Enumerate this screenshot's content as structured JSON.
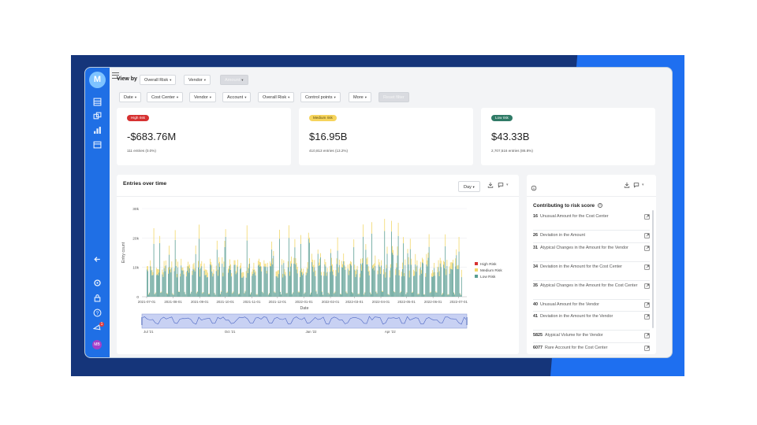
{
  "toolbar": {
    "view_by_label": "View by",
    "view_by": [
      {
        "label": "Overall Risk",
        "disabled": false
      },
      {
        "label": "Vendor",
        "disabled": false
      },
      {
        "label": "Amount",
        "disabled": true
      }
    ]
  },
  "filters": [
    {
      "label": "Date",
      "disabled": false
    },
    {
      "label": "Cost Center",
      "disabled": false
    },
    {
      "label": "Vendor",
      "disabled": false
    },
    {
      "label": "Account",
      "disabled": false
    },
    {
      "label": "Overall Risk",
      "disabled": false
    },
    {
      "label": "Control points",
      "disabled": false
    },
    {
      "label": "More",
      "disabled": false
    },
    {
      "label": "Reset filter",
      "disabled": true
    }
  ],
  "kpis": [
    {
      "tag": "High risk",
      "tag_color": "#d63131",
      "tag_text_color": "#ffffff",
      "value": "-$683.76M",
      "sub": "111 entries (0.0%)"
    },
    {
      "tag": "Medium risk",
      "tag_color": "#f6d45c",
      "tag_text_color": "#5a4a10",
      "value": "$16.95B",
      "sub": "410,813 entries (13.2%)"
    },
    {
      "tag": "Low risk",
      "tag_color": "#2f7a66",
      "tag_text_color": "#ffffff",
      "value": "$43.33B",
      "sub": "2,707,516 entries (86.8%)"
    }
  ],
  "entries": {
    "title": "Entries over time",
    "granularity": "Day",
    "download_icon": "download-icon",
    "comment_icon": "comment-icon"
  },
  "chart_data": {
    "type": "bar",
    "stacked": true,
    "xlabel": "Date",
    "ylabel": "Entry count",
    "ylim": [
      0,
      30000
    ],
    "y_ticks": [
      "0",
      "10k",
      "20k",
      "30k"
    ],
    "x_ticks": [
      "2021-07-01",
      "2021-08-01",
      "2021-09-01",
      "2021-10-01",
      "2021-11-01",
      "2021-12-01",
      "2022-01-01",
      "2022-02-01",
      "2022-03-01",
      "2022-04-01",
      "2022-05-01",
      "2022-06-01",
      "2022-07-01"
    ],
    "x_range": [
      "2021-07-01",
      "2022-07-05"
    ],
    "legend_position": "right",
    "series": [
      {
        "name": "High Risk",
        "color": "#d63131"
      },
      {
        "name": "Medium Risk",
        "color": "#f2d768"
      },
      {
        "name": "Low Risk",
        "color": "#5a9d92"
      }
    ],
    "daily_totals_approx": [
      {
        "range": "2021-07 to 2021-08",
        "low_typical": 8500,
        "medium_typical": 1500,
        "peaks_up_to": 27000
      },
      {
        "range": "2021-09 to 2021-12",
        "low_typical": 8500,
        "medium_typical": 1600,
        "peaks_up_to": 26000
      },
      {
        "range": "2022-01 to 2022-03",
        "low_typical": 9000,
        "medium_typical": 1800,
        "peaks_up_to": 26000
      },
      {
        "range": "2022-04 to 2022-07",
        "low_typical": 9500,
        "medium_typical": 1900,
        "peaks_up_to": 23000
      }
    ],
    "navigator_ticks": [
      "Jul '21",
      "Oct '21",
      "Jan '22",
      "Apr '22"
    ]
  },
  "risk_panel": {
    "title": "Contributing to risk score",
    "items": [
      {
        "count": "16",
        "label": "Unusual Amount for the Cost Center"
      },
      {
        "count": "26",
        "label": "Deviation in the Amount"
      },
      {
        "count": "31",
        "label": "Atypical Changes in the Amount for the Vendor"
      },
      {
        "count": "34",
        "label": "Deviation in the Amount for the Cost Center"
      },
      {
        "count": "35",
        "label": "Atypical Changes in the Amount for the Cost Center"
      },
      {
        "count": "40",
        "label": "Unusual Amount for the Vendor"
      },
      {
        "count": "41",
        "label": "Deviation in the Amount for the Vendor"
      },
      {
        "count": "5825",
        "label": "Atypical Volume for the Vendor"
      },
      {
        "count": "6077",
        "label": "Rare Account for the Cost Center"
      }
    ]
  },
  "rail": {
    "logo": "M",
    "avatar": "MB",
    "notification_count": "1",
    "icons": [
      "list-icon",
      "cube-icon",
      "bar-chart-icon",
      "box-icon",
      "collapse-arrow-icon",
      "settings-icon",
      "lock-icon",
      "help-icon",
      "notification-icon"
    ]
  }
}
